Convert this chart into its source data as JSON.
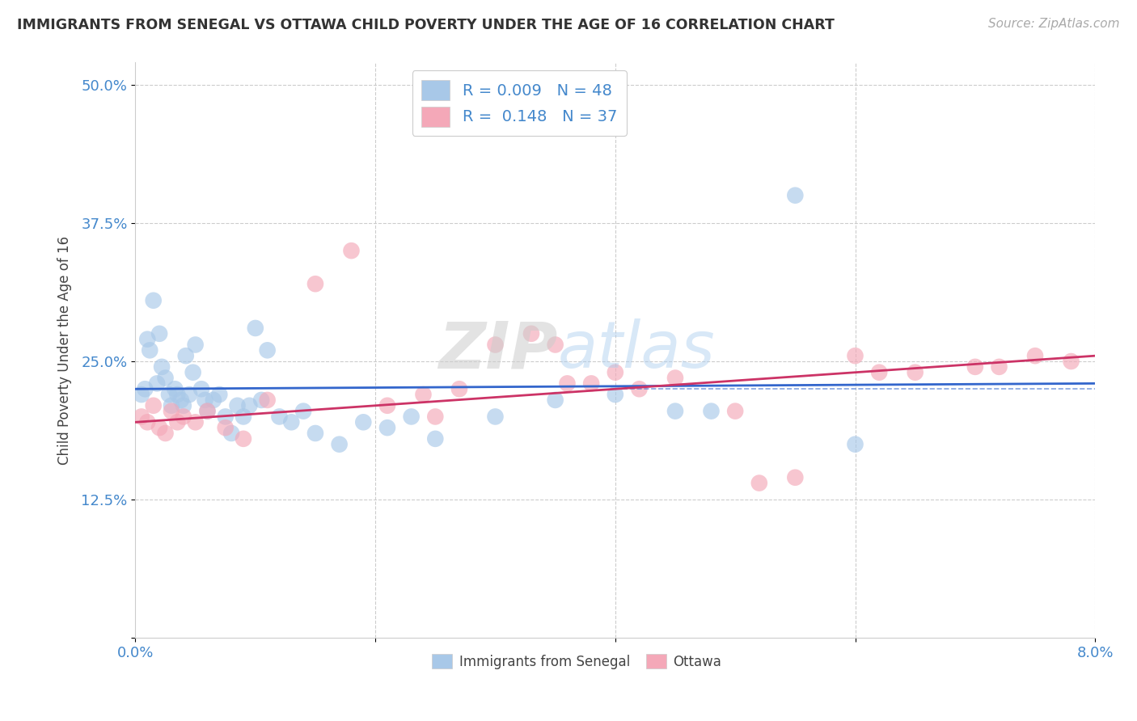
{
  "title": "IMMIGRANTS FROM SENEGAL VS OTTAWA CHILD POVERTY UNDER THE AGE OF 16 CORRELATION CHART",
  "source": "Source: ZipAtlas.com",
  "ylabel": "Child Poverty Under the Age of 16",
  "xlim": [
    0.0,
    8.0
  ],
  "ylim": [
    0.0,
    52.0
  ],
  "ytick_vals": [
    0.0,
    12.5,
    25.0,
    37.5,
    50.0
  ],
  "ytick_labels": [
    "",
    "12.5%",
    "25.0%",
    "37.5%",
    "50.0%"
  ],
  "xtick_vals": [
    0.0,
    2.0,
    4.0,
    6.0,
    8.0
  ],
  "xtick_labels": [
    "0.0%",
    "",
    "",
    "",
    "8.0%"
  ],
  "legend_1_label": "R = 0.009   N = 48",
  "legend_2_label": "R =  0.148   N = 37",
  "legend_label_1": "Immigrants from Senegal",
  "legend_label_2": "Ottawa",
  "blue_color": "#a8c8e8",
  "pink_color": "#f4a8b8",
  "blue_line_color": "#3366cc",
  "pink_line_color": "#cc3366",
  "watermark_zip": "ZIP",
  "watermark_atlas": "atlas",
  "blue_scatter_x": [
    0.05,
    0.08,
    0.1,
    0.12,
    0.15,
    0.18,
    0.2,
    0.22,
    0.25,
    0.28,
    0.3,
    0.33,
    0.35,
    0.38,
    0.4,
    0.42,
    0.45,
    0.48,
    0.5,
    0.55,
    0.58,
    0.6,
    0.65,
    0.7,
    0.75,
    0.8,
    0.85,
    0.9,
    0.95,
    1.0,
    1.05,
    1.1,
    1.2,
    1.3,
    1.4,
    1.5,
    1.7,
    1.9,
    2.1,
    2.3,
    2.5,
    3.0,
    3.5,
    4.0,
    4.5,
    5.5,
    6.0,
    4.8
  ],
  "blue_scatter_y": [
    22.0,
    22.5,
    27.0,
    26.0,
    30.5,
    23.0,
    27.5,
    24.5,
    23.5,
    22.0,
    21.0,
    22.5,
    22.0,
    21.5,
    21.0,
    25.5,
    22.0,
    24.0,
    26.5,
    22.5,
    21.5,
    20.5,
    21.5,
    22.0,
    20.0,
    18.5,
    21.0,
    20.0,
    21.0,
    28.0,
    21.5,
    26.0,
    20.0,
    19.5,
    20.5,
    18.5,
    17.5,
    19.5,
    19.0,
    20.0,
    18.0,
    20.0,
    21.5,
    22.0,
    20.5,
    40.0,
    17.5,
    20.5
  ],
  "pink_scatter_x": [
    0.05,
    0.1,
    0.15,
    0.2,
    0.25,
    0.3,
    0.35,
    0.4,
    0.5,
    0.6,
    0.75,
    0.9,
    1.1,
    1.5,
    1.8,
    2.1,
    2.4,
    2.7,
    3.0,
    3.3,
    3.6,
    4.0,
    4.5,
    5.0,
    5.5,
    6.0,
    6.5,
    7.0,
    7.5,
    2.5,
    3.8,
    4.2,
    5.2,
    6.2,
    7.2,
    7.8,
    3.5
  ],
  "pink_scatter_y": [
    20.0,
    19.5,
    21.0,
    19.0,
    18.5,
    20.5,
    19.5,
    20.0,
    19.5,
    20.5,
    19.0,
    18.0,
    21.5,
    32.0,
    35.0,
    21.0,
    22.0,
    22.5,
    26.5,
    27.5,
    23.0,
    24.0,
    23.5,
    20.5,
    14.5,
    25.5,
    24.0,
    24.5,
    25.5,
    20.0,
    23.0,
    22.5,
    14.0,
    24.0,
    24.5,
    25.0,
    26.5
  ],
  "blue_trend_x": [
    0.0,
    8.0
  ],
  "blue_trend_y": [
    22.5,
    23.0
  ],
  "pink_trend_x": [
    0.0,
    8.0
  ],
  "pink_trend_y": [
    19.5,
    25.5
  ],
  "blue_mean_line_y": 22.5,
  "tick_color": "#4488cc",
  "grid_color": "#cccccc",
  "spine_color": "#cccccc"
}
